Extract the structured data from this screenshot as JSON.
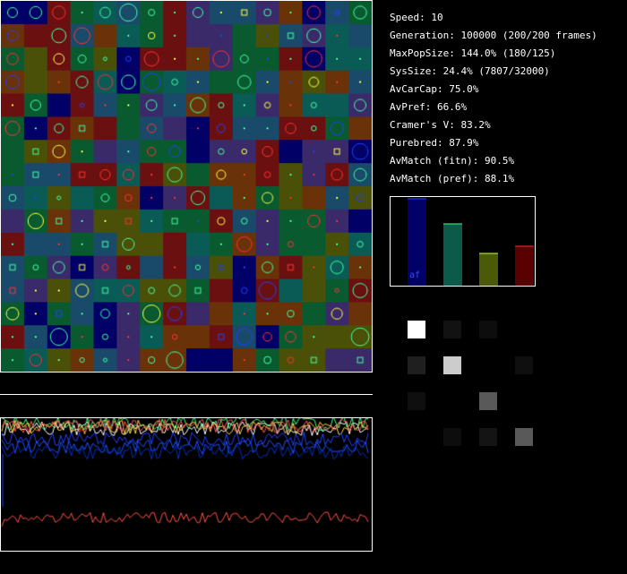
{
  "stats": {
    "speed": "Speed: 10",
    "generation": "Generation: 100000 (200/200 frames)",
    "max_pop_size": "MaxPopSize: 144.0% (180/125)",
    "sys_size": "SysSize: 24.4% (7807/32000)",
    "av_car_cap": "AvCarCap: 75.0%",
    "av_pref": "AvPref: 66.6%",
    "cramers_v": "Cramer's V: 83.2%",
    "purebred": "Purebred: 87.9%",
    "av_match_fitn": "AvMatch (fitn): 90.5%",
    "av_match_pref": "AvMatch (pref): 88.1%"
  },
  "bar_panel": {
    "label": "af",
    "bars": [
      {
        "color": "#000066",
        "level": 0.97
      },
      {
        "color": "#0b5a4a",
        "level": 0.69
      },
      {
        "color": "#4a5a08",
        "level": 0.36
      },
      {
        "color": "#5a0000",
        "level": 0.44
      }
    ],
    "markers": [
      "#2244ff",
      "#40ff80",
      "#c8ff40",
      "#ff3030"
    ]
  },
  "matrix": {
    "values": [
      [
        1.0,
        0.07,
        0.05,
        0.0
      ],
      [
        0.12,
        0.8,
        0.0,
        0.06
      ],
      [
        0.06,
        0.0,
        0.35,
        0.0
      ],
      [
        0.0,
        0.05,
        0.08,
        0.35
      ]
    ]
  },
  "grid": {
    "rows": 16,
    "cols": 16,
    "palette": [
      "#0a5a30",
      "#1a4a6a",
      "#3a2a6a",
      "#6a1010",
      "#000066",
      "#0a5a56",
      "#4a5008",
      "#6a3208"
    ],
    "seed": 7
  },
  "plot": {
    "series_colors": [
      "#ffffff",
      "#40ff80",
      "#ffd040",
      "#ff5050",
      "#2040ff",
      "#2050ff",
      "#0030c0",
      "#ff5040"
    ],
    "levels": [
      0.92,
      0.96,
      0.93,
      0.94,
      0.84,
      0.78,
      0.74,
      0.24
    ]
  }
}
